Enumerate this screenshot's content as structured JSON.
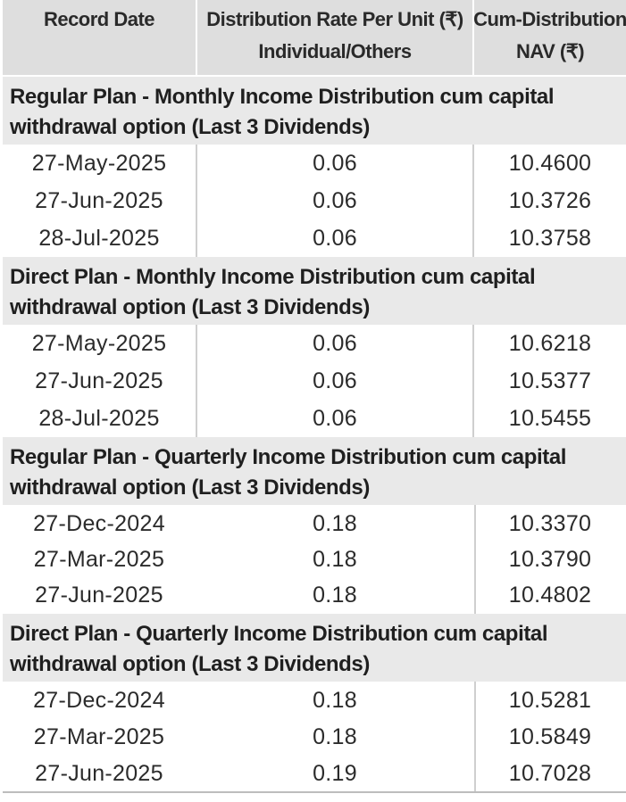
{
  "header": {
    "col1": "Record Date",
    "col2_line1": "Distribution Rate Per Unit  (₹)",
    "col2_line2": "Individual/Others",
    "col3_line1": "Cum-Distribution",
    "col3_line2": "NAV (₹)"
  },
  "sections": [
    {
      "title_line1": "Regular Plan - Monthly Income Distribution cum capital",
      "title_line2": "withdrawal option (Last 3 Dividends)",
      "rows": [
        {
          "date": "27-May-2025",
          "rate": "0.06",
          "nav": "10.4600"
        },
        {
          "date": "27-Jun-2025",
          "rate": "0.06",
          "nav": "10.3726"
        },
        {
          "date": "28-Jul-2025",
          "rate": "0.06",
          "nav": "10.3758"
        }
      ]
    },
    {
      "title_line1": "Direct Plan - Monthly Income Distribution cum capital",
      "title_line2": "withdrawal option (Last 3 Dividends)",
      "rows": [
        {
          "date": "27-May-2025",
          "rate": "0.06",
          "nav": "10.6218"
        },
        {
          "date": "27-Jun-2025",
          "rate": "0.06",
          "nav": "10.5377"
        },
        {
          "date": "28-Jul-2025",
          "rate": "0.06",
          "nav": "10.5455"
        }
      ]
    },
    {
      "title_line1": "Regular Plan - Quarterly Income Distribution cum capital",
      "title_line2": "withdrawal option (Last 3 Dividends)",
      "rows": [
        {
          "date": "27-Dec-2024",
          "rate": "0.18",
          "nav": "10.3370"
        },
        {
          "date": "27-Mar-2025",
          "rate": "0.18",
          "nav": "10.3790"
        },
        {
          "date": "27-Jun-2025",
          "rate": "0.18",
          "nav": "10.4802"
        }
      ]
    },
    {
      "title_line1": "Direct Plan - Quarterly Income Distribution cum capital",
      "title_line2": "withdrawal option (Last 3 Dividends)",
      "rows": [
        {
          "date": "27-Dec-2024",
          "rate": "0.18",
          "nav": "10.5281"
        },
        {
          "date": "27-Mar-2025",
          "rate": "0.18",
          "nav": "10.5849"
        },
        {
          "date": "27-Jun-2025",
          "rate": "0.19",
          "nav": "10.7028"
        }
      ]
    }
  ]
}
